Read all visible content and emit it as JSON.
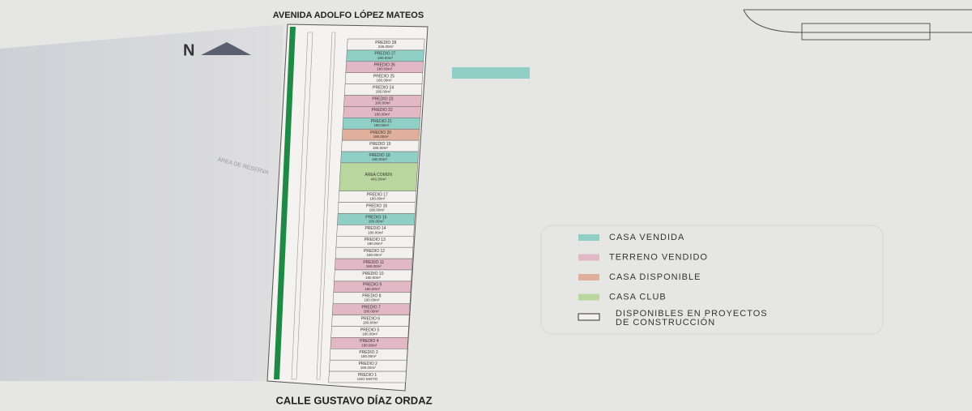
{
  "header": {
    "top_street": "AVENIDA ADOLFO LÓPEZ MATEOS",
    "bottom_street": "CALLE GUSTAVO DÍAZ ORDAZ",
    "north": "N",
    "reserve": "ÁREA DE RESERVA"
  },
  "lots": [
    {
      "name": "PREDIO 28",
      "area": "236.00m²",
      "color": "#f2f1ef"
    },
    {
      "name": "PREDIO 27",
      "area": "180.00m²",
      "color": "#8fcfc6"
    },
    {
      "name": "PREDIO 26",
      "area": "180.00m²",
      "color": "#e2b7c6"
    },
    {
      "name": "PREDIO 25",
      "area": "180.00m²",
      "color": "#f2f1ef"
    },
    {
      "name": "PREDIO 24",
      "area": "180.00m²",
      "color": "#f2f1ef"
    },
    {
      "name": "PREDIO 23",
      "area": "180.00m²",
      "color": "#e2b7c6"
    },
    {
      "name": "PREDIO 22",
      "area": "180.00m²",
      "color": "#e2b7c6"
    },
    {
      "name": "PREDIO 21",
      "area": "180.00m²",
      "color": "#8fcfc6"
    },
    {
      "name": "PREDIO 20",
      "area": "180.00m²",
      "color": "#e0b09c"
    },
    {
      "name": "PREDIO 19",
      "area": "180.00m²",
      "color": "#f2f1ef"
    },
    {
      "name": "PREDIO 18",
      "area": "180.00m²",
      "color": "#8fcfc6"
    },
    {
      "name": "ÁREA COMÚN",
      "area": "441.00m²",
      "color": "#b9d69e"
    },
    {
      "name": "PREDIO 17",
      "area": "180.00m²",
      "color": "#f2f1ef"
    },
    {
      "name": "PREDIO 16",
      "area": "180.00m²",
      "color": "#f2f1ef"
    },
    {
      "name": "PREDIO 15",
      "area": "180.00m²",
      "color": "#8fcfc6"
    },
    {
      "name": "PREDIO 14",
      "area": "180.00m²",
      "color": "#f2f1ef"
    },
    {
      "name": "PREDIO 13",
      "area": "180.00m²",
      "color": "#f2f1ef"
    },
    {
      "name": "PREDIO 12",
      "area": "180.00m²",
      "color": "#f2f1ef"
    },
    {
      "name": "PREDIO 11",
      "area": "180.00m²",
      "color": "#e2b7c6"
    },
    {
      "name": "PREDIO 10",
      "area": "180.00m²",
      "color": "#f2f1ef"
    },
    {
      "name": "PREDIO 9",
      "area": "180.00m²",
      "color": "#e2b7c6"
    },
    {
      "name": "PREDIO 8",
      "area": "180.00m²",
      "color": "#f2f1ef"
    },
    {
      "name": "PREDIO 7",
      "area": "180.00m²",
      "color": "#e2b7c6"
    },
    {
      "name": "PREDIO 6",
      "area": "180.00m²",
      "color": "#f2f1ef"
    },
    {
      "name": "PREDIO 5",
      "area": "180.00m²",
      "color": "#f2f1ef"
    },
    {
      "name": "PREDIO 4",
      "area": "180.00m²",
      "color": "#e2b7c6"
    },
    {
      "name": "PREDIO 3",
      "area": "180.00m²",
      "color": "#f2f1ef"
    },
    {
      "name": "PREDIO 2",
      "area": "180.00m²",
      "color": "#f2f1ef"
    },
    {
      "name": "PREDIO 1",
      "area": "USO MIXTO",
      "color": "#f2f1ef"
    }
  ],
  "legend": [
    {
      "label": "CASA VENDIDA",
      "color": "#8fcfc6"
    },
    {
      "label": "TERRENO VENDIDO",
      "color": "#e2b7c6"
    },
    {
      "label": "CASA DISPONIBLE",
      "color": "#e0b09c"
    },
    {
      "label": "CASA CLUB",
      "color": "#b9d69e"
    },
    {
      "label": "DISPONIBLES EN PROYECTOS DE CONSTRUCCIÓN",
      "color": "#f2f1ef"
    }
  ]
}
